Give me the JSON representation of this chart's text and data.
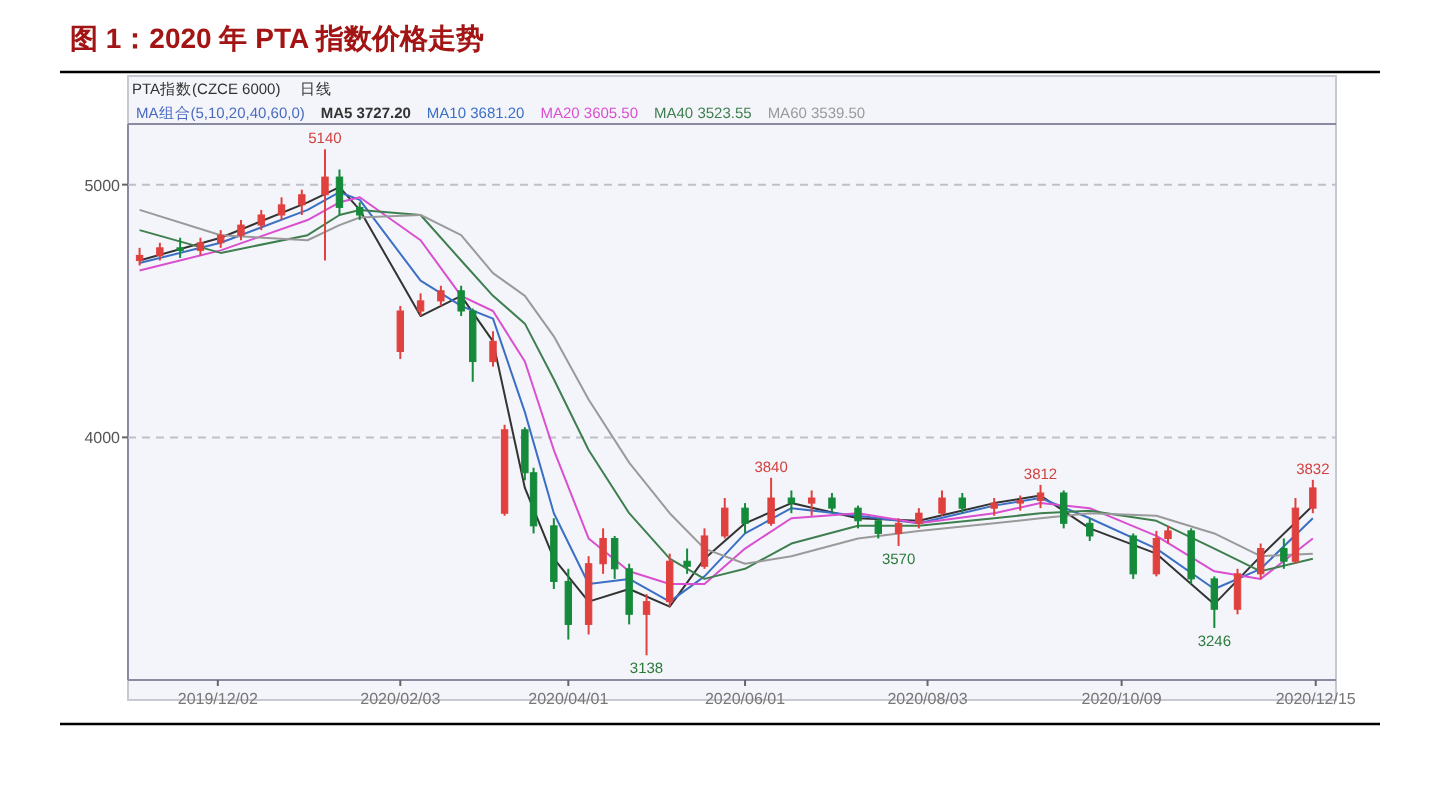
{
  "chart_data": {
    "type": "candlestick",
    "title": "图 1：2020 年 PTA 指数价格走势",
    "x": [
      "2019-11-05",
      "2019-11-12",
      "2019-11-19",
      "2019-11-26",
      "2019-12-03",
      "2019-12-10",
      "2019-12-17",
      "2019-12-24",
      "2019-12-31",
      "2020-01-08",
      "2020-01-13",
      "2020-01-20",
      "2020-02-03",
      "2020-02-10",
      "2020-02-17",
      "2020-02-24",
      "2020-02-28",
      "2020-03-06",
      "2020-03-10",
      "2020-03-17",
      "2020-03-20",
      "2020-03-27",
      "2020-04-01",
      "2020-04-08",
      "2020-04-13",
      "2020-04-17",
      "2020-04-22",
      "2020-04-28",
      "2020-05-06",
      "2020-05-12",
      "2020-05-18",
      "2020-05-25",
      "2020-06-01",
      "2020-06-10",
      "2020-06-17",
      "2020-06-24",
      "2020-07-01",
      "2020-07-10",
      "2020-07-17",
      "2020-07-24",
      "2020-07-31",
      "2020-08-08",
      "2020-08-15",
      "2020-08-26",
      "2020-09-04",
      "2020-09-11",
      "2020-09-19",
      "2020-09-28",
      "2020-10-13",
      "2020-10-21",
      "2020-10-25",
      "2020-11-02",
      "2020-11-10",
      "2020-11-18",
      "2020-11-26",
      "2020-12-04",
      "2020-12-08",
      "2020-12-14"
    ],
    "ohlc": [
      [
        4700,
        4750,
        4680,
        4720
      ],
      [
        4720,
        4770,
        4700,
        4750
      ],
      [
        4750,
        4790,
        4710,
        4740
      ],
      [
        4740,
        4790,
        4720,
        4770
      ],
      [
        4770,
        4820,
        4750,
        4800
      ],
      [
        4800,
        4860,
        4780,
        4840
      ],
      [
        4840,
        4900,
        4820,
        4880
      ],
      [
        4880,
        4950,
        4860,
        4920
      ],
      [
        4920,
        4980,
        4880,
        4960
      ],
      [
        4960,
        5140,
        4700,
        5030
      ],
      [
        5030,
        5060,
        4880,
        4910
      ],
      [
        4910,
        4930,
        4860,
        4880
      ],
      [
        4340,
        4520,
        4310,
        4500
      ],
      [
        4500,
        4570,
        4480,
        4540
      ],
      [
        4540,
        4600,
        4520,
        4580
      ],
      [
        4580,
        4600,
        4480,
        4500
      ],
      [
        4500,
        4510,
        4220,
        4300
      ],
      [
        4300,
        4420,
        4280,
        4380
      ],
      [
        3700,
        4050,
        3690,
        4030
      ],
      [
        4030,
        4040,
        3830,
        3860
      ],
      [
        3860,
        3880,
        3620,
        3650
      ],
      [
        3650,
        3680,
        3400,
        3430
      ],
      [
        3430,
        3480,
        3200,
        3260
      ],
      [
        3260,
        3530,
        3220,
        3500
      ],
      [
        3500,
        3640,
        3460,
        3600
      ],
      [
        3600,
        3610,
        3440,
        3480
      ],
      [
        3480,
        3500,
        3260,
        3300
      ],
      [
        3300,
        3380,
        3138,
        3350
      ],
      [
        3350,
        3540,
        3330,
        3510
      ],
      [
        3510,
        3560,
        3460,
        3490
      ],
      [
        3490,
        3640,
        3480,
        3610
      ],
      [
        3610,
        3760,
        3600,
        3720
      ],
      [
        3720,
        3740,
        3620,
        3660
      ],
      [
        3660,
        3840,
        3650,
        3760
      ],
      [
        3760,
        3790,
        3700,
        3740
      ],
      [
        3740,
        3790,
        3690,
        3760
      ],
      [
        3760,
        3780,
        3700,
        3720
      ],
      [
        3720,
        3730,
        3640,
        3670
      ],
      [
        3670,
        3680,
        3600,
        3620
      ],
      [
        3620,
        3680,
        3570,
        3660
      ],
      [
        3660,
        3720,
        3640,
        3700
      ],
      [
        3700,
        3790,
        3690,
        3760
      ],
      [
        3760,
        3780,
        3700,
        3720
      ],
      [
        3720,
        3760,
        3690,
        3740
      ],
      [
        3740,
        3770,
        3710,
        3750
      ],
      [
        3750,
        3812,
        3720,
        3780
      ],
      [
        3780,
        3790,
        3640,
        3660
      ],
      [
        3660,
        3680,
        3590,
        3610
      ],
      [
        3610,
        3620,
        3440,
        3460
      ],
      [
        3460,
        3630,
        3450,
        3600
      ],
      [
        3600,
        3650,
        3580,
        3630
      ],
      [
        3630,
        3640,
        3420,
        3440
      ],
      [
        3440,
        3450,
        3246,
        3320
      ],
      [
        3320,
        3480,
        3300,
        3460
      ],
      [
        3460,
        3580,
        3440,
        3560
      ],
      [
        3560,
        3600,
        3480,
        3510
      ],
      [
        3510,
        3760,
        3500,
        3720
      ],
      [
        3720,
        3832,
        3700,
        3800
      ]
    ],
    "series": [
      {
        "type": "line",
        "name": "MA5 3727.20",
        "color": "#333333",
        "x": [
          "2019-11-05",
          "2019-12-03",
          "2020-01-02",
          "2020-01-13",
          "2020-01-20",
          "2020-02-10",
          "2020-02-24",
          "2020-03-06",
          "2020-03-17",
          "2020-03-27",
          "2020-04-08",
          "2020-04-22",
          "2020-05-06",
          "2020-05-18",
          "2020-06-01",
          "2020-06-17",
          "2020-07-10",
          "2020-07-31",
          "2020-08-26",
          "2020-09-11",
          "2020-09-28",
          "2020-10-21",
          "2020-11-10",
          "2020-11-26",
          "2020-12-14"
        ],
        "values": [
          4700,
          4790,
          4930,
          4990,
          4900,
          4480,
          4560,
          4380,
          3800,
          3520,
          3350,
          3400,
          3330,
          3520,
          3660,
          3740,
          3680,
          3670,
          3740,
          3770,
          3640,
          3540,
          3340,
          3530,
          3730
        ]
      },
      {
        "type": "line",
        "name": "MA10 3681.20",
        "color": "#3b6fc4",
        "x": [
          "2019-11-05",
          "2019-12-03",
          "2020-01-02",
          "2020-01-13",
          "2020-01-20",
          "2020-02-10",
          "2020-02-24",
          "2020-03-06",
          "2020-03-17",
          "2020-03-27",
          "2020-04-08",
          "2020-04-22",
          "2020-05-06",
          "2020-05-18",
          "2020-06-01",
          "2020-06-17",
          "2020-07-10",
          "2020-07-31",
          "2020-08-26",
          "2020-09-11",
          "2020-09-28",
          "2020-10-21",
          "2020-11-10",
          "2020-11-26",
          "2020-12-14"
        ],
        "values": [
          4690,
          4770,
          4900,
          4970,
          4940,
          4620,
          4520,
          4470,
          4100,
          3700,
          3420,
          3440,
          3350,
          3450,
          3620,
          3720,
          3690,
          3660,
          3730,
          3760,
          3680,
          3560,
          3400,
          3480,
          3680
        ]
      },
      {
        "type": "line",
        "name": "MA20 3605.50",
        "color": "#d94fd0",
        "x": [
          "2019-11-05",
          "2019-12-03",
          "2020-01-02",
          "2020-01-13",
          "2020-01-20",
          "2020-02-10",
          "2020-02-24",
          "2020-03-06",
          "2020-03-17",
          "2020-03-27",
          "2020-04-08",
          "2020-04-22",
          "2020-05-06",
          "2020-05-18",
          "2020-06-01",
          "2020-06-17",
          "2020-07-10",
          "2020-07-31",
          "2020-08-26",
          "2020-09-11",
          "2020-09-28",
          "2020-10-21",
          "2020-11-10",
          "2020-11-26",
          "2020-12-14"
        ],
        "values": [
          4660,
          4740,
          4860,
          4930,
          4950,
          4780,
          4560,
          4500,
          4300,
          3950,
          3600,
          3470,
          3420,
          3420,
          3560,
          3680,
          3700,
          3660,
          3700,
          3740,
          3720,
          3610,
          3470,
          3440,
          3600
        ]
      },
      {
        "type": "line",
        "name": "MA40 3523.55",
        "color": "#3f7f4f",
        "x": [
          "2019-11-05",
          "2019-12-03",
          "2020-01-02",
          "2020-01-13",
          "2020-01-20",
          "2020-02-10",
          "2020-02-24",
          "2020-03-06",
          "2020-03-17",
          "2020-03-27",
          "2020-04-08",
          "2020-04-22",
          "2020-05-06",
          "2020-05-18",
          "2020-06-01",
          "2020-06-17",
          "2020-07-10",
          "2020-07-31",
          "2020-08-26",
          "2020-09-11",
          "2020-09-28",
          "2020-10-21",
          "2020-11-10",
          "2020-11-26",
          "2020-12-14"
        ],
        "values": [
          4820,
          4730,
          4800,
          4880,
          4900,
          4880,
          4700,
          4560,
          4450,
          4230,
          3950,
          3700,
          3520,
          3440,
          3480,
          3580,
          3650,
          3650,
          3680,
          3700,
          3710,
          3670,
          3560,
          3470,
          3520
        ]
      },
      {
        "type": "line",
        "name": "MA60 3539.50",
        "color": "#9a9a9a",
        "x": [
          "2019-11-05",
          "2019-12-03",
          "2020-01-02",
          "2020-01-13",
          "2020-01-20",
          "2020-02-10",
          "2020-02-24",
          "2020-03-06",
          "2020-03-17",
          "2020-03-27",
          "2020-04-08",
          "2020-04-22",
          "2020-05-06",
          "2020-05-18",
          "2020-06-01",
          "2020-06-17",
          "2020-07-10",
          "2020-07-31",
          "2020-08-26",
          "2020-09-11",
          "2020-09-28",
          "2020-10-21",
          "2020-11-10",
          "2020-11-26",
          "2020-12-14"
        ],
        "values": [
          4900,
          4800,
          4780,
          4840,
          4870,
          4880,
          4800,
          4650,
          4560,
          4400,
          4150,
          3900,
          3700,
          3560,
          3500,
          3530,
          3600,
          3630,
          3660,
          3680,
          3700,
          3690,
          3620,
          3530,
          3540
        ]
      }
    ],
    "legend_title": "MA组合(5,10,20,40,60,0)",
    "legend": "top left",
    "xlim": [
      "2019-11-01",
      "2020-12-22"
    ],
    "xticks": [
      {
        "value": "2019-12-02",
        "label": "2019/12/02"
      },
      {
        "value": "2020-02-03",
        "label": "2020/02/03"
      },
      {
        "value": "2020-04-01",
        "label": "2020/04/01"
      },
      {
        "value": "2020-06-01",
        "label": "2020/06/01"
      },
      {
        "value": "2020-08-03",
        "label": "2020/08/03"
      },
      {
        "value": "2020-10-09",
        "label": "2020/10/09"
      },
      {
        "value": "2020-12-15",
        "label": "2020/12/15"
      }
    ],
    "ylim": [
      3040,
      5240
    ],
    "yticks": [
      4000,
      5000
    ],
    "grid": "y",
    "annotations": [
      "PTA指数(CZCE 6000)",
      "日线",
      {
        "text": "5140",
        "x": "2020-01-08",
        "y": 5140
      },
      {
        "text": "3138",
        "x": "2020-04-28",
        "y": 3138
      },
      {
        "text": "3840",
        "x": "2020-06-10",
        "y": 3840
      },
      {
        "text": "3570",
        "x": "2020-07-24",
        "y": 3570
      },
      {
        "text": "3812",
        "x": "2020-09-11",
        "y": 3812
      },
      {
        "text": "3246",
        "x": "2020-11-10",
        "y": 3246
      },
      {
        "text": "3832",
        "x": "2020-12-14",
        "y": 3832
      }
    ]
  }
}
